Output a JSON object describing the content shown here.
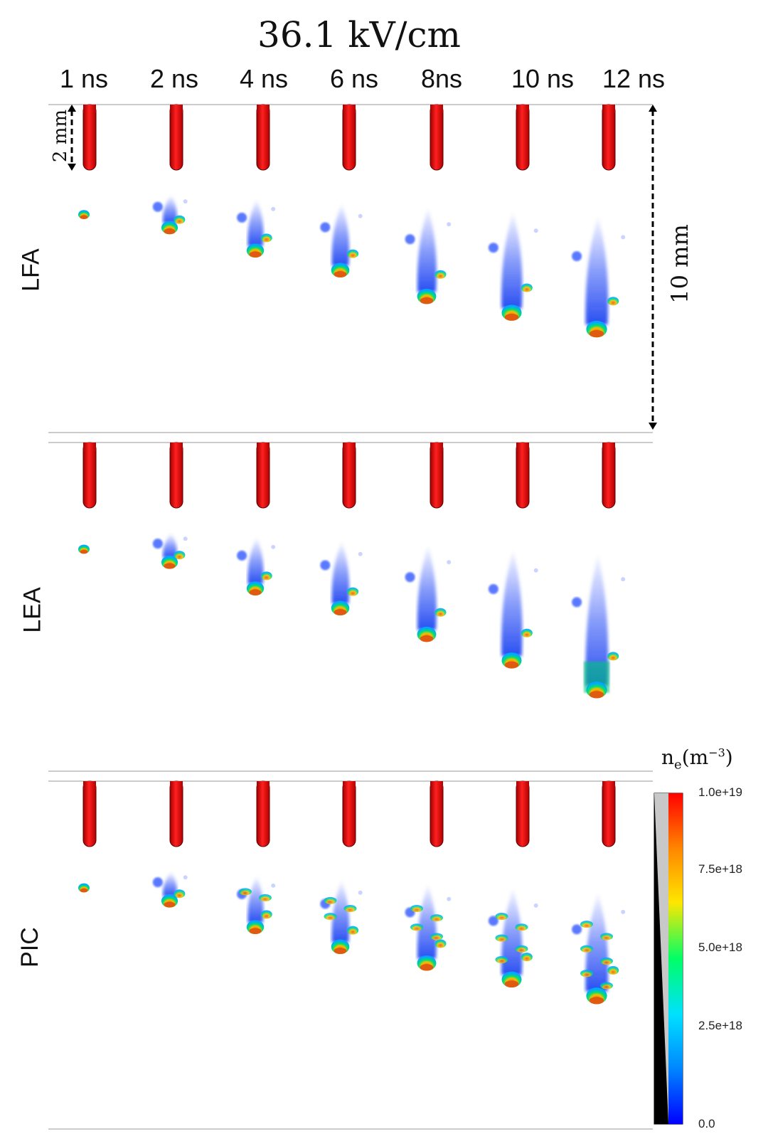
{
  "title": "36.1 kV/cm",
  "time_labels": [
    "1 ns",
    "2 ns",
    "4 ns",
    "6 ns",
    "8ns",
    "10 ns",
    "12 ns"
  ],
  "rows": [
    {
      "label": "LFA"
    },
    {
      "label": "LEA"
    },
    {
      "label": "PIC"
    }
  ],
  "scale": {
    "small": "2 mm",
    "large": "10 mm"
  },
  "colorbar": {
    "title_base": "n",
    "title_sub": "e",
    "title_unit": "(m",
    "title_exp": "−3",
    "title_close": ")",
    "ticks": [
      "1.0e+19",
      "7.5e+18",
      "5.0e+18",
      "2.5e+18",
      "0.0"
    ],
    "tick_values": [
      1e+19,
      7.5e+18,
      5e+18,
      2.5e+18,
      0
    ],
    "colors": [
      "#0000ff",
      "#0088ff",
      "#00e0ff",
      "#00ff66",
      "#ffe600",
      "#ff8800",
      "#ff0000"
    ]
  },
  "colors": {
    "electrode": "#e00000",
    "streamer_body": "#2a4df5",
    "streamer_head_a": "#00e070",
    "streamer_head_b": "#e85a10"
  },
  "streamer_reach_mm": {
    "LFA": [
      1.1,
      1.5,
      2.2,
      2.8,
      3.6,
      4.1,
      4.6
    ],
    "LEA": [
      1.0,
      1.4,
      2.2,
      2.8,
      3.6,
      4.4,
      5.3
    ],
    "PIC": [
      1.0,
      1.4,
      2.2,
      2.8,
      3.3,
      3.8,
      4.3
    ]
  }
}
